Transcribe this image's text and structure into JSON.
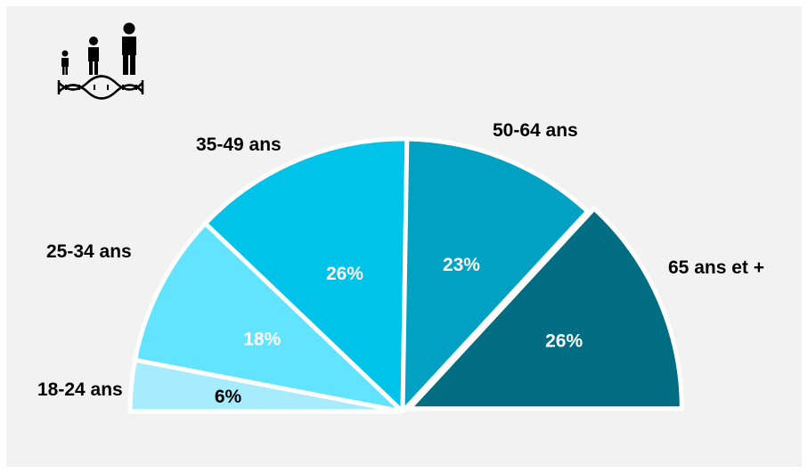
{
  "chart_data": {
    "type": "pie",
    "variant": "half-donut-exploded",
    "categories": [
      "18-24 ans",
      "25-34 ans",
      "35-49 ans",
      "50-64 ans",
      "65 ans et +"
    ],
    "values": [
      6,
      18,
      26,
      23,
      26
    ],
    "value_labels": [
      "6%",
      "18%",
      "26%",
      "23%",
      "26%"
    ],
    "colors": [
      "#a7ebff",
      "#62e3ff",
      "#00c3ea",
      "#00a1c2",
      "#006d82"
    ],
    "value_label_colors": [
      "#000000",
      "#ffffff",
      "#ffffff",
      "#ffffff",
      "#ffffff"
    ],
    "title": "",
    "legend": "none"
  },
  "icon": {
    "name": "family-dna-icon"
  }
}
